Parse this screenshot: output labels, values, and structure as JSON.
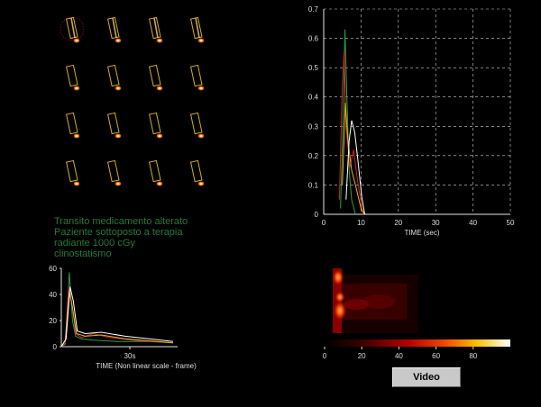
{
  "patient_note": {
    "lines": [
      "Transito medicamento alterato",
      "Paziente sottoposto a terapia",
      "radiante 1000 cGy",
      "clinostatismo"
    ]
  },
  "video_button_label": "Video",
  "chart_data": [
    {
      "type": "line",
      "xlabel": "TIME (sec)",
      "ylabel": "",
      "xlim": [
        0,
        50
      ],
      "ylim": [
        0,
        0.7
      ],
      "x_ticks": [
        "0",
        "10",
        "20",
        "30",
        "40",
        "50"
      ],
      "y_ticks": [
        "0",
        "0.1",
        "0.2",
        "0.3",
        "0.4",
        "0.5",
        "0.6",
        "0.7"
      ],
      "grid": true,
      "series": [
        {
          "color": "#1fa34a",
          "points": [
            [
              4.5,
              0.02
            ],
            [
              5.3,
              0.35
            ],
            [
              5.7,
              0.63
            ],
            [
              6.2,
              0.4
            ],
            [
              6.8,
              0.15
            ],
            [
              7.5,
              0.05
            ],
            [
              8.5,
              0.0
            ]
          ]
        },
        {
          "color": "#d42020",
          "points": [
            [
              4.2,
              0.05
            ],
            [
              5.0,
              0.45
            ],
            [
              5.5,
              0.56
            ],
            [
              6.0,
              0.3
            ],
            [
              7.0,
              0.16
            ],
            [
              8.0,
              0.22
            ],
            [
              9.0,
              0.12
            ],
            [
              10.5,
              0.0
            ]
          ]
        },
        {
          "color": "#e8b020",
          "points": [
            [
              5.0,
              0.1
            ],
            [
              5.8,
              0.38
            ],
            [
              6.5,
              0.25
            ],
            [
              7.5,
              0.15
            ],
            [
              8.5,
              0.1
            ],
            [
              10.0,
              0.02
            ],
            [
              11.0,
              0.0
            ]
          ]
        },
        {
          "color": "#ffffff",
          "points": [
            [
              6.0,
              0.05
            ],
            [
              6.8,
              0.25
            ],
            [
              7.5,
              0.32
            ],
            [
              8.3,
              0.28
            ],
            [
              9.2,
              0.18
            ],
            [
              10.2,
              0.06
            ],
            [
              11.0,
              0.0
            ]
          ]
        }
      ]
    },
    {
      "type": "line",
      "xlabel": "TIME (Non linear scale - frame)",
      "ylabel": "",
      "ylim": [
        0,
        60
      ],
      "y_ticks": [
        "0",
        "20",
        "40",
        "60"
      ],
      "x_tick_label": "30s",
      "grid": false,
      "series": [
        {
          "color": "#1fa34a",
          "points": [
            [
              0,
              0
            ],
            [
              5,
              2
            ],
            [
              10,
              57
            ],
            [
              14,
              20
            ],
            [
              18,
              8
            ],
            [
              25,
              6
            ],
            [
              40,
              5
            ],
            [
              70,
              4
            ],
            [
              110,
              4
            ],
            [
              140,
              3
            ]
          ]
        },
        {
          "color": "#d42020",
          "points": [
            [
              0,
              0
            ],
            [
              5,
              3
            ],
            [
              9,
              45
            ],
            [
              13,
              35
            ],
            [
              18,
              10
            ],
            [
              25,
              7
            ],
            [
              40,
              10
            ],
            [
              60,
              7
            ],
            [
              90,
              5
            ],
            [
              140,
              3
            ]
          ]
        },
        {
          "color": "#e8b020",
          "points": [
            [
              0,
              0
            ],
            [
              5,
              5
            ],
            [
              10,
              42
            ],
            [
              14,
              30
            ],
            [
              19,
              10
            ],
            [
              30,
              8
            ],
            [
              50,
              9
            ],
            [
              80,
              6
            ],
            [
              140,
              3
            ]
          ]
        },
        {
          "color": "#ffffff",
          "points": [
            [
              0,
              0
            ],
            [
              6,
              6
            ],
            [
              11,
              46
            ],
            [
              15,
              35
            ],
            [
              20,
              12
            ],
            [
              30,
              10
            ],
            [
              50,
              11
            ],
            [
              80,
              8
            ],
            [
              110,
              6
            ],
            [
              140,
              4
            ]
          ]
        }
      ]
    },
    {
      "type": "heatmap",
      "colorbar_ticks": [
        "0",
        "20",
        "40",
        "60",
        "80"
      ],
      "colorbar_range": [
        0,
        100
      ]
    }
  ]
}
